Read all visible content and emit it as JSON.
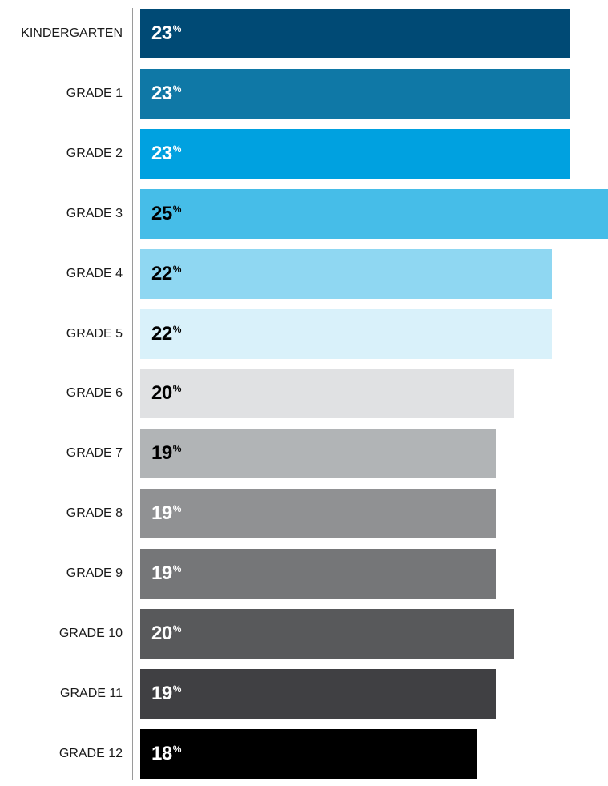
{
  "chart_data": {
    "type": "bar",
    "orientation": "horizontal",
    "categories": [
      "KINDERGARTEN",
      "GRADE 1",
      "GRADE 2",
      "GRADE 3",
      "GRADE 4",
      "GRADE 5",
      "GRADE 6",
      "GRADE 7",
      "GRADE 8",
      "GRADE 9",
      "GRADE 10",
      "GRADE 11",
      "GRADE 12"
    ],
    "values": [
      23,
      23,
      23,
      25,
      22,
      22,
      20,
      19,
      19,
      19,
      20,
      19,
      18
    ],
    "value_unit": "%",
    "xlim": [
      0,
      25
    ],
    "grid": false,
    "legend": "none",
    "bar_colors": [
      "#004a75",
      "#0f78a6",
      "#00a1e0",
      "#46bde8",
      "#8fd7f2",
      "#d9f1fa",
      "#e0e1e3",
      "#b1b4b6",
      "#909193",
      "#757678",
      "#58595b",
      "#404043",
      "#000000"
    ],
    "label_colors": [
      "#ffffff",
      "#ffffff",
      "#ffffff",
      "#000000",
      "#000000",
      "#000000",
      "#000000",
      "#000000",
      "#ffffff",
      "#ffffff",
      "#ffffff",
      "#ffffff",
      "#ffffff"
    ]
  }
}
